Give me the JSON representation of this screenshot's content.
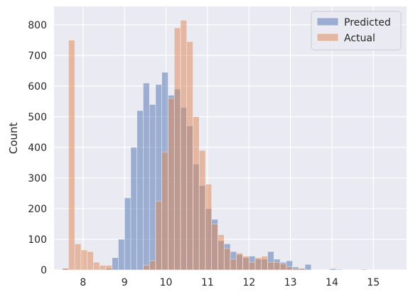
{
  "chart_data": {
    "type": "bar",
    "subtype": "histogram-overlay",
    "title": "",
    "xlabel": "",
    "ylabel": "Count",
    "xlim": [
      7.3,
      15.8
    ],
    "ylim": [
      0,
      860
    ],
    "xticks": [
      8,
      9,
      10,
      11,
      12,
      13,
      14,
      15
    ],
    "yticks": [
      0,
      100,
      200,
      300,
      400,
      500,
      600,
      700,
      800
    ],
    "grid": true,
    "legend_position": "top-right",
    "series": [
      {
        "name": "Predicted",
        "color": "#4c72b0",
        "bins": [
          {
            "x0": 7.5,
            "x1": 7.65,
            "value": 5
          },
          {
            "x0": 8.55,
            "x1": 8.7,
            "value": 5
          },
          {
            "x0": 8.7,
            "x1": 8.85,
            "value": 40
          },
          {
            "x0": 8.85,
            "x1": 9.0,
            "value": 100
          },
          {
            "x0": 9.0,
            "x1": 9.15,
            "value": 235
          },
          {
            "x0": 9.15,
            "x1": 9.3,
            "value": 400
          },
          {
            "x0": 9.3,
            "x1": 9.45,
            "value": 520
          },
          {
            "x0": 9.45,
            "x1": 9.6,
            "value": 610
          },
          {
            "x0": 9.6,
            "x1": 9.75,
            "value": 540
          },
          {
            "x0": 9.75,
            "x1": 9.9,
            "value": 605
          },
          {
            "x0": 9.9,
            "x1": 10.05,
            "value": 645
          },
          {
            "x0": 10.05,
            "x1": 10.2,
            "value": 570
          },
          {
            "x0": 10.2,
            "x1": 10.35,
            "value": 590
          },
          {
            "x0": 10.35,
            "x1": 10.5,
            "value": 530
          },
          {
            "x0": 10.5,
            "x1": 10.65,
            "value": 470
          },
          {
            "x0": 10.65,
            "x1": 10.8,
            "value": 345
          },
          {
            "x0": 10.8,
            "x1": 10.95,
            "value": 275
          },
          {
            "x0": 10.95,
            "x1": 11.1,
            "value": 200
          },
          {
            "x0": 11.1,
            "x1": 11.25,
            "value": 165
          },
          {
            "x0": 11.25,
            "x1": 11.4,
            "value": 95
          },
          {
            "x0": 11.4,
            "x1": 11.55,
            "value": 85
          },
          {
            "x0": 11.55,
            "x1": 11.7,
            "value": 60
          },
          {
            "x0": 11.7,
            "x1": 11.85,
            "value": 50
          },
          {
            "x0": 11.85,
            "x1": 12.0,
            "value": 40
          },
          {
            "x0": 12.0,
            "x1": 12.15,
            "value": 45
          },
          {
            "x0": 12.15,
            "x1": 12.3,
            "value": 35
          },
          {
            "x0": 12.3,
            "x1": 12.45,
            "value": 35
          },
          {
            "x0": 12.45,
            "x1": 12.6,
            "value": 60
          },
          {
            "x0": 12.6,
            "x1": 12.75,
            "value": 35
          },
          {
            "x0": 12.75,
            "x1": 12.9,
            "value": 25
          },
          {
            "x0": 12.9,
            "x1": 13.05,
            "value": 30
          },
          {
            "x0": 13.05,
            "x1": 13.2,
            "value": 10
          },
          {
            "x0": 13.2,
            "x1": 13.35,
            "value": 5
          },
          {
            "x0": 13.35,
            "x1": 13.5,
            "value": 18
          },
          {
            "x0": 13.95,
            "x1": 14.1,
            "value": 4
          },
          {
            "x0": 14.1,
            "x1": 14.25,
            "value": 2
          },
          {
            "x0": 14.7,
            "x1": 14.85,
            "value": 2
          }
        ]
      },
      {
        "name": "Actual",
        "color": "#dd8452",
        "bins": [
          {
            "x0": 7.5,
            "x1": 7.65,
            "value": 5
          },
          {
            "x0": 7.65,
            "x1": 7.8,
            "value": 750
          },
          {
            "x0": 7.8,
            "x1": 7.95,
            "value": 85
          },
          {
            "x0": 7.95,
            "x1": 8.1,
            "value": 65
          },
          {
            "x0": 8.1,
            "x1": 8.25,
            "value": 60
          },
          {
            "x0": 8.25,
            "x1": 8.4,
            "value": 25
          },
          {
            "x0": 8.4,
            "x1": 8.55,
            "value": 15
          },
          {
            "x0": 8.55,
            "x1": 8.7,
            "value": 15
          },
          {
            "x0": 9.45,
            "x1": 9.6,
            "value": 15
          },
          {
            "x0": 9.6,
            "x1": 9.75,
            "value": 30
          },
          {
            "x0": 9.75,
            "x1": 9.9,
            "value": 225
          },
          {
            "x0": 9.9,
            "x1": 10.05,
            "value": 385
          },
          {
            "x0": 10.05,
            "x1": 10.2,
            "value": 560
          },
          {
            "x0": 10.2,
            "x1": 10.35,
            "value": 790
          },
          {
            "x0": 10.35,
            "x1": 10.5,
            "value": 815
          },
          {
            "x0": 10.5,
            "x1": 10.65,
            "value": 745
          },
          {
            "x0": 10.65,
            "x1": 10.8,
            "value": 500
          },
          {
            "x0": 10.8,
            "x1": 10.95,
            "value": 390
          },
          {
            "x0": 10.95,
            "x1": 11.1,
            "value": 280
          },
          {
            "x0": 11.1,
            "x1": 11.25,
            "value": 150
          },
          {
            "x0": 11.25,
            "x1": 11.4,
            "value": 115
          },
          {
            "x0": 11.4,
            "x1": 11.55,
            "value": 70
          },
          {
            "x0": 11.55,
            "x1": 11.7,
            "value": 35
          },
          {
            "x0": 11.7,
            "x1": 11.85,
            "value": 55
          },
          {
            "x0": 11.85,
            "x1": 12.0,
            "value": 45
          },
          {
            "x0": 12.0,
            "x1": 12.15,
            "value": 25
          },
          {
            "x0": 12.15,
            "x1": 12.3,
            "value": 40
          },
          {
            "x0": 12.3,
            "x1": 12.45,
            "value": 45
          },
          {
            "x0": 12.45,
            "x1": 12.6,
            "value": 25
          },
          {
            "x0": 12.6,
            "x1": 12.75,
            "value": 25
          },
          {
            "x0": 12.75,
            "x1": 12.9,
            "value": 20
          },
          {
            "x0": 12.9,
            "x1": 13.05,
            "value": 10
          },
          {
            "x0": 13.05,
            "x1": 13.2,
            "value": 5
          },
          {
            "x0": 13.2,
            "x1": 13.35,
            "value": 5
          }
        ]
      }
    ]
  }
}
